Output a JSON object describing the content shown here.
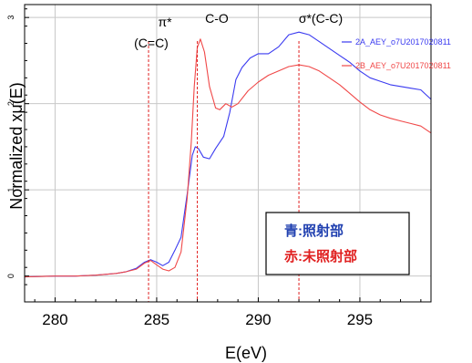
{
  "chart_data": {
    "type": "line",
    "xlabel": "E(eV)",
    "ylabel": "Normalized xμ(E)",
    "xlim": [
      278.5,
      298.5
    ],
    "ylim": [
      -0.3,
      3.15
    ],
    "x_ticks": [
      280,
      285,
      290,
      295
    ],
    "x_tick_labels": [
      "280",
      "285",
      "290",
      "295"
    ],
    "y_ticks": [
      0,
      1,
      2,
      3
    ],
    "y_tick_labels": [
      "0",
      "1",
      "2",
      "3"
    ],
    "grid": false,
    "legend_position": "top-right",
    "colors": {
      "blue": "#3a3af0",
      "red": "#f04848",
      "annotation_line": "#e02020",
      "grid": "#c8c8c8"
    },
    "series": [
      {
        "name": "2A_AEY_o7U2017020811",
        "color": "#3a3af0",
        "points": [
          [
            278.5,
            -0.01
          ],
          [
            280,
            0.0
          ],
          [
            281,
            0.0
          ],
          [
            282,
            0.01
          ],
          [
            283,
            0.03
          ],
          [
            283.5,
            0.05
          ],
          [
            284,
            0.09
          ],
          [
            284.4,
            0.16
          ],
          [
            284.7,
            0.19
          ],
          [
            285.0,
            0.16
          ],
          [
            285.3,
            0.12
          ],
          [
            285.6,
            0.16
          ],
          [
            285.9,
            0.3
          ],
          [
            286.2,
            0.45
          ],
          [
            286.5,
            0.95
          ],
          [
            286.75,
            1.4
          ],
          [
            286.9,
            1.5
          ],
          [
            287.05,
            1.48
          ],
          [
            287.3,
            1.38
          ],
          [
            287.6,
            1.36
          ],
          [
            287.9,
            1.48
          ],
          [
            288.3,
            1.62
          ],
          [
            288.6,
            1.9
          ],
          [
            288.9,
            2.28
          ],
          [
            289.2,
            2.42
          ],
          [
            289.6,
            2.53
          ],
          [
            290.0,
            2.58
          ],
          [
            290.5,
            2.58
          ],
          [
            291.0,
            2.66
          ],
          [
            291.5,
            2.8
          ],
          [
            292.0,
            2.83
          ],
          [
            292.5,
            2.8
          ],
          [
            293.0,
            2.72
          ],
          [
            293.5,
            2.64
          ],
          [
            294.0,
            2.56
          ],
          [
            294.5,
            2.48
          ],
          [
            295.0,
            2.38
          ],
          [
            295.5,
            2.3
          ],
          [
            296.0,
            2.26
          ],
          [
            296.5,
            2.22
          ],
          [
            297.0,
            2.2
          ],
          [
            297.5,
            2.18
          ],
          [
            298.0,
            2.16
          ],
          [
            298.5,
            2.05
          ]
        ]
      },
      {
        "name": "2B_AEY_o7U2017020811",
        "color": "#f04848",
        "points": [
          [
            278.5,
            -0.01
          ],
          [
            280,
            0.0
          ],
          [
            281,
            0.0
          ],
          [
            282,
            0.01
          ],
          [
            283,
            0.03
          ],
          [
            283.5,
            0.05
          ],
          [
            284,
            0.08
          ],
          [
            284.4,
            0.15
          ],
          [
            284.7,
            0.18
          ],
          [
            285.0,
            0.13
          ],
          [
            285.3,
            0.08
          ],
          [
            285.6,
            0.06
          ],
          [
            285.9,
            0.1
          ],
          [
            286.2,
            0.28
          ],
          [
            286.5,
            0.9
          ],
          [
            286.7,
            1.55
          ],
          [
            286.85,
            2.2
          ],
          [
            287.0,
            2.65
          ],
          [
            287.15,
            2.75
          ],
          [
            287.35,
            2.6
          ],
          [
            287.6,
            2.2
          ],
          [
            287.9,
            1.95
          ],
          [
            288.1,
            1.93
          ],
          [
            288.4,
            2.0
          ],
          [
            288.7,
            1.96
          ],
          [
            289.0,
            2.0
          ],
          [
            289.5,
            2.15
          ],
          [
            290.0,
            2.25
          ],
          [
            290.5,
            2.33
          ],
          [
            291.0,
            2.38
          ],
          [
            291.5,
            2.43
          ],
          [
            292.0,
            2.45
          ],
          [
            292.5,
            2.43
          ],
          [
            293.0,
            2.38
          ],
          [
            293.5,
            2.3
          ],
          [
            294.0,
            2.22
          ],
          [
            294.5,
            2.12
          ],
          [
            295.0,
            2.02
          ],
          [
            295.5,
            1.93
          ],
          [
            296.0,
            1.87
          ],
          [
            296.5,
            1.83
          ],
          [
            297.0,
            1.8
          ],
          [
            297.5,
            1.77
          ],
          [
            298.0,
            1.74
          ],
          [
            298.5,
            1.66
          ]
        ]
      }
    ],
    "vlines": [
      284.6,
      287.0,
      292.0
    ],
    "annotations": [
      {
        "id": "pi-star",
        "line1": "π*",
        "line2": "(C=C)"
      },
      {
        "id": "c-o",
        "line1": "C-O"
      },
      {
        "id": "sigma-star",
        "line1": "σ*(C-C)"
      }
    ],
    "info_box": {
      "line1_prefix": "青",
      "line1_rest": ":照射部",
      "line2_prefix": "赤",
      "line2_rest": ":未照射部"
    }
  }
}
